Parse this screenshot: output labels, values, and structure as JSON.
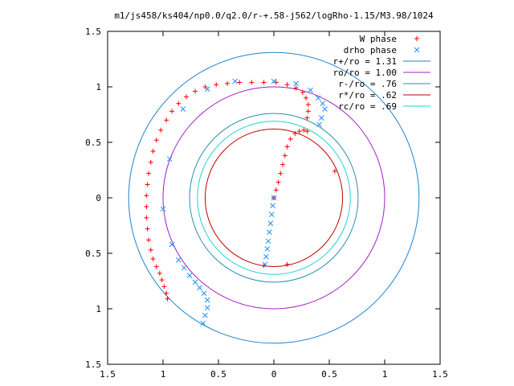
{
  "chart_data": {
    "type": "scatter",
    "title": "m1/js458/ks404/np0.0/q2.0/r-+.58-j562/logRho-1.15/M3.98/1024",
    "xlabel": "",
    "ylabel": "",
    "xlim": [
      -1.5,
      1.5
    ],
    "ylim": [
      -1.5,
      1.5
    ],
    "x_tick_values": [
      -1.5,
      -1,
      -0.5,
      0,
      0.5,
      1,
      1.5
    ],
    "x_tick_labels": [
      "1.5",
      "1",
      "0.5",
      "0",
      "0.5",
      "1",
      "1.5"
    ],
    "y_tick_values": [
      1.5,
      1,
      0.5,
      0,
      -0.5,
      -1,
      -1.5
    ],
    "y_tick_labels": [
      "1.5",
      "1",
      "0.5",
      "0",
      "0.5",
      "1",
      "1.5"
    ],
    "grid": false,
    "legend_position": "top-right",
    "series": [
      {
        "name": "W phase",
        "marker": "+",
        "color": "#ff0000",
        "points": [
          [
            -0.96,
            -0.91
          ],
          [
            -0.97,
            -0.86
          ],
          [
            -0.99,
            -0.8
          ],
          [
            -1.01,
            -0.74
          ],
          [
            -1.03,
            -0.68
          ],
          [
            -1.06,
            -0.62
          ],
          [
            -1.09,
            -0.55
          ],
          [
            -1.11,
            -0.47
          ],
          [
            -1.13,
            -0.38
          ],
          [
            -1.14,
            -0.28
          ],
          [
            -1.15,
            -0.18
          ],
          [
            -1.15,
            -0.08
          ],
          [
            -1.15,
            0.02
          ],
          [
            -1.14,
            0.12
          ],
          [
            -1.13,
            0.22
          ],
          [
            -1.11,
            0.32
          ],
          [
            -1.09,
            0.42
          ],
          [
            -1.06,
            0.52
          ],
          [
            -1.02,
            0.61
          ],
          [
            -0.97,
            0.7
          ],
          [
            -0.92,
            0.78
          ],
          [
            -0.86,
            0.85
          ],
          [
            -0.79,
            0.91
          ],
          [
            -0.71,
            0.96
          ],
          [
            -0.62,
            1.0
          ],
          [
            -0.52,
            1.02
          ],
          [
            -0.42,
            1.03
          ],
          [
            -0.31,
            1.04
          ],
          [
            -0.2,
            1.04
          ],
          [
            -0.09,
            1.04
          ],
          [
            0.02,
            1.04
          ],
          [
            0.12,
            1.02
          ],
          [
            0.2,
            0.99
          ],
          [
            0.26,
            0.95
          ],
          [
            0.29,
            0.9
          ],
          [
            0.31,
            0.84
          ],
          [
            0.31,
            0.78
          ],
          [
            0.3,
            0.72
          ],
          [
            -0.09,
            -0.61
          ],
          [
            0.12,
            -0.6
          ],
          [
            0.3,
            0.6
          ],
          [
            0.27,
            0.61
          ],
          [
            0.55,
            0.24
          ],
          [
            0.0,
            0.0
          ],
          [
            0.02,
            0.07
          ],
          [
            0.04,
            0.14
          ],
          [
            0.06,
            0.22
          ],
          [
            0.08,
            0.3
          ],
          [
            0.1,
            0.38
          ],
          [
            0.12,
            0.46
          ],
          [
            0.15,
            0.53
          ],
          [
            0.19,
            0.58
          ],
          [
            0.23,
            0.6
          ]
        ]
      },
      {
        "name": "drho phase",
        "marker": "x",
        "color": "#1e90ff",
        "points": [
          [
            -0.64,
            -1.13
          ],
          [
            -0.62,
            -1.06
          ],
          [
            -0.6,
            -0.99
          ],
          [
            -0.6,
            -0.92
          ],
          [
            -0.63,
            -0.86
          ],
          [
            -0.67,
            -0.81
          ],
          [
            -0.71,
            -0.76
          ],
          [
            -0.76,
            -0.7
          ],
          [
            -0.81,
            -0.63
          ],
          [
            -0.86,
            -0.56
          ],
          [
            -0.92,
            -0.42
          ],
          [
            -1.0,
            -0.1
          ],
          [
            -0.94,
            0.35
          ],
          [
            -0.82,
            0.8
          ],
          [
            -0.6,
            0.98
          ],
          [
            -0.35,
            1.05
          ],
          [
            0.0,
            1.05
          ],
          [
            0.2,
            1.03
          ],
          [
            0.33,
            0.97
          ],
          [
            0.4,
            0.9
          ],
          [
            0.44,
            0.85
          ],
          [
            0.46,
            0.8
          ],
          [
            0.43,
            0.72
          ],
          [
            0.41,
            0.66
          ],
          [
            0.0,
            0.0
          ],
          [
            -0.01,
            -0.07
          ],
          [
            -0.02,
            -0.15
          ],
          [
            -0.03,
            -0.23
          ],
          [
            -0.04,
            -0.31
          ],
          [
            -0.05,
            -0.39
          ],
          [
            -0.06,
            -0.46
          ],
          [
            -0.07,
            -0.53
          ],
          [
            -0.08,
            -0.6
          ]
        ]
      }
    ],
    "circles": [
      {
        "name": "r+/ro = 1.31",
        "radius": 1.31,
        "color": "#1a85cf"
      },
      {
        "name": "ro/ro = 1.00",
        "radius": 1.0,
        "color": "#a020c0"
      },
      {
        "name": "r-/ro = .76",
        "radius": 0.76,
        "color": "#2a8fb5"
      },
      {
        "name": "r*/ro = .62",
        "radius": 0.62,
        "color": "#c00000"
      },
      {
        "name": "rc/ro = .69",
        "radius": 0.69,
        "color": "#20d0d0"
      }
    ]
  }
}
